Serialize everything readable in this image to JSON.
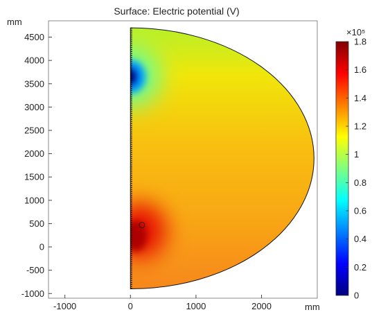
{
  "chart_data": {
    "type": "heatmap",
    "title": "Surface: Electric potential (V)",
    "x_unit": "mm",
    "y_unit": "mm",
    "xlim": [
      -1250,
      2850
    ],
    "ylim": [
      -1100,
      4850
    ],
    "x_ticks": [
      -1000,
      0,
      1000,
      2000
    ],
    "x_tick_labels": [
      "-1000",
      "0",
      "1000",
      "2000"
    ],
    "y_ticks": [
      -1000,
      -500,
      0,
      500,
      1000,
      1500,
      2000,
      2500,
      3000,
      3500,
      4000,
      4500
    ],
    "y_tick_labels": [
      "-1000",
      "-500",
      "0",
      "500",
      "1000",
      "1500",
      "2000",
      "2500",
      "3000",
      "3500",
      "4000",
      "4500"
    ],
    "domain": {
      "shape": "half-disc",
      "center": [
        0,
        1900
      ],
      "radius": 2800,
      "y_top": 4700,
      "y_bottom": -900
    },
    "colorbar": {
      "multiplier": "×10⁵",
      "min": 0,
      "max": 1.8,
      "ticks": [
        0,
        0.2,
        0.4,
        0.6,
        0.8,
        1,
        1.2,
        1.4,
        1.6,
        1.8
      ],
      "tick_labels": [
        "0",
        "0.2",
        "0.4",
        "0.6",
        "0.8",
        "1",
        "1.2",
        "1.4",
        "1.6",
        "1.8"
      ],
      "colormap": [
        "#00007f",
        "#0000ff",
        "#007fff",
        "#00ffff",
        "#7fff7f",
        "#ffff00",
        "#ff7f00",
        "#ff0000",
        "#7f0000"
      ]
    },
    "field_features": [
      {
        "kind": "low_spot",
        "x": 0,
        "y": 3650,
        "value": 0.0
      },
      {
        "kind": "high_spot",
        "x": 80,
        "y": 350,
        "value": 1.72
      }
    ],
    "approx_values": {
      "top_region": 1.05,
      "bulk": 1.35,
      "bottom_region": 1.55
    }
  }
}
